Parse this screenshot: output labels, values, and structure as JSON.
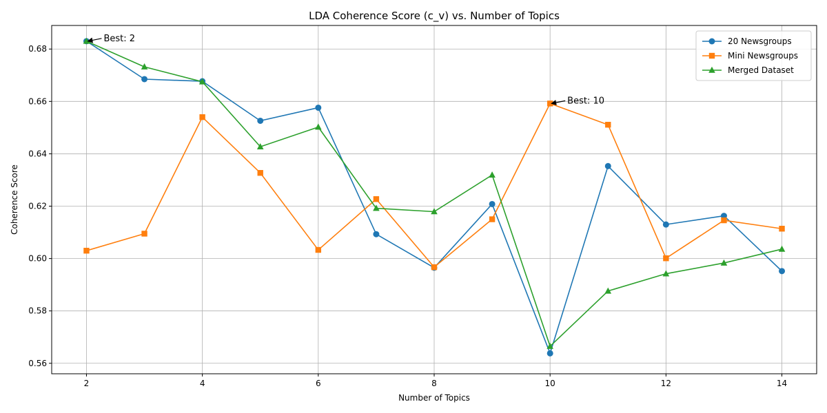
{
  "chart_data": {
    "type": "line",
    "title": "LDA Coherence Score (c_v) vs. Number of Topics",
    "xlabel": "Number of Topics",
    "ylabel": "Coherence Score",
    "x": [
      2,
      3,
      4,
      5,
      6,
      7,
      8,
      9,
      10,
      11,
      12,
      13,
      14
    ],
    "xlim": [
      1.4,
      14.6
    ],
    "ylim": [
      0.556,
      0.689
    ],
    "xticks": [
      2,
      4,
      6,
      8,
      10,
      12,
      14
    ],
    "yticks": [
      0.56,
      0.58,
      0.6,
      0.62,
      0.64,
      0.66,
      0.68
    ],
    "xtick_labels": [
      "2",
      "4",
      "6",
      "8",
      "10",
      "12",
      "14"
    ],
    "ytick_labels": [
      "0.56",
      "0.58",
      "0.60",
      "0.62",
      "0.64",
      "0.66",
      "0.68"
    ],
    "grid": true,
    "legend_position": "top-right",
    "series": [
      {
        "name": "20 Newsgroups",
        "color": "#1f77b4",
        "marker": "circle",
        "values": [
          0.683,
          0.6685,
          0.6677,
          0.6526,
          0.6576,
          0.6093,
          0.5965,
          0.6208,
          0.5638,
          0.6353,
          0.613,
          0.6163,
          0.5952
        ]
      },
      {
        "name": "Mini Newsgroups",
        "color": "#ff7f0e",
        "marker": "square",
        "values": [
          0.603,
          0.6095,
          0.654,
          0.6327,
          0.6033,
          0.6227,
          0.5967,
          0.615,
          0.6592,
          0.6511,
          0.6001,
          0.6146,
          0.6114
        ]
      },
      {
        "name": "Merged Dataset",
        "color": "#2ca02c",
        "marker": "triangle",
        "values": [
          0.683,
          0.6732,
          0.6675,
          0.6427,
          0.6502,
          0.6192,
          0.6179,
          0.6319,
          0.5665,
          0.5876,
          0.5942,
          0.5983,
          0.6036
        ]
      }
    ],
    "annotations": [
      {
        "text": "Best: 2",
        "x": 2,
        "y": 0.683
      },
      {
        "text": "Best: 10",
        "x": 10,
        "y": 0.6592
      }
    ]
  }
}
